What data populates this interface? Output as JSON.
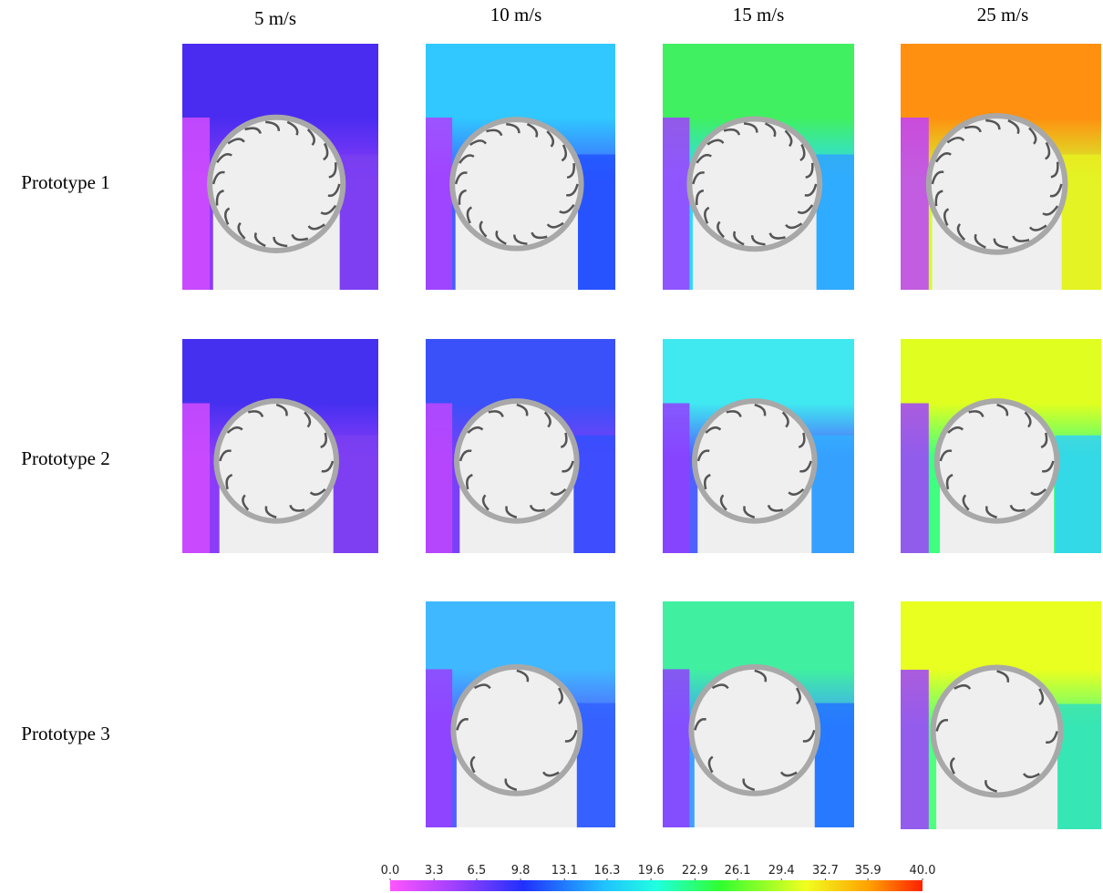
{
  "columns": [
    "5 m/s",
    "10 m/s",
    "15 m/s",
    "25 m/s"
  ],
  "rows": [
    "Prototype 1",
    "Prototype 2",
    "Prototype 3"
  ],
  "colorbar": {
    "ticks": [
      {
        "value": 0,
        "label": "0.0"
      },
      {
        "value": 3.3,
        "label": "3.3"
      },
      {
        "value": 6.5,
        "label": "6.5"
      },
      {
        "value": 9.8,
        "label": "9.8"
      },
      {
        "value": 13.1,
        "label": "13.1"
      },
      {
        "value": 16.3,
        "label": "16.3"
      },
      {
        "value": 19.6,
        "label": "19.6"
      },
      {
        "value": 22.9,
        "label": "22.9"
      },
      {
        "value": 26.1,
        "label": "26.1"
      },
      {
        "value": 29.4,
        "label": "29.4"
      },
      {
        "value": 32.7,
        "label": "32.7"
      },
      {
        "value": 35.9,
        "label": "35.9"
      },
      {
        "value": 40,
        "label": "40.0"
      }
    ]
  }
}
